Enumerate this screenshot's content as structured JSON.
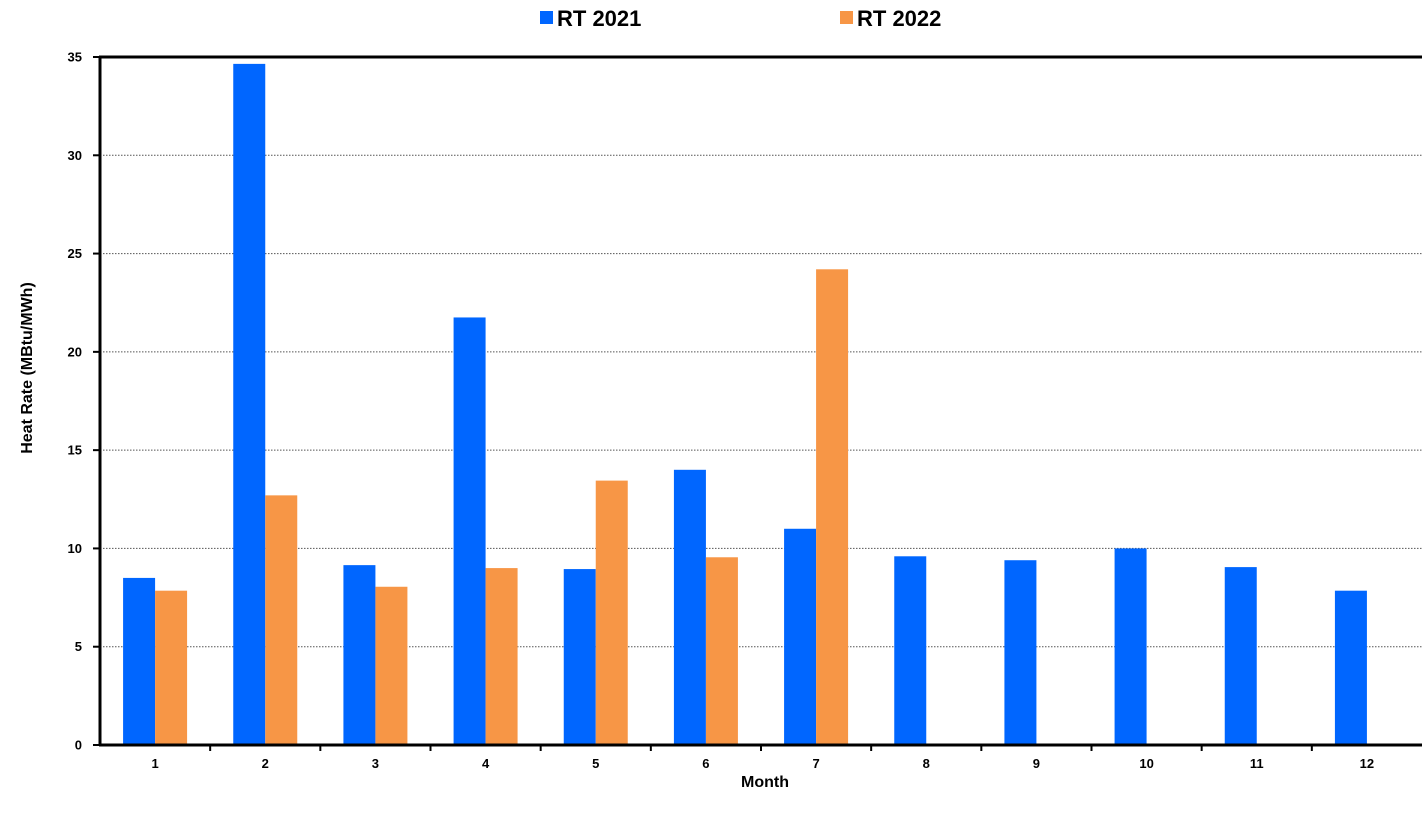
{
  "chart_data": {
    "type": "bar",
    "title": "",
    "xlabel": "Month",
    "ylabel": "Heat Rate (MBtu/MWh)",
    "categories": [
      "1",
      "2",
      "3",
      "4",
      "5",
      "6",
      "7",
      "8",
      "9",
      "10",
      "11",
      "12"
    ],
    "series": [
      {
        "name": "RT 2021",
        "color": "#0066FF",
        "values": [
          8.5,
          34.65,
          9.15,
          21.75,
          8.95,
          14.0,
          11.0,
          9.6,
          9.4,
          10.0,
          9.05,
          7.85
        ]
      },
      {
        "name": "RT 2022",
        "color": "#F79646",
        "values": [
          7.85,
          12.7,
          8.05,
          9.0,
          13.45,
          9.55,
          24.2,
          null,
          null,
          null,
          null,
          null
        ]
      }
    ],
    "ylim": [
      0,
      35
    ],
    "yticks": [
      0,
      5,
      10,
      15,
      20,
      25,
      30,
      35
    ],
    "grid": "horizontal",
    "legend_position": "top"
  }
}
